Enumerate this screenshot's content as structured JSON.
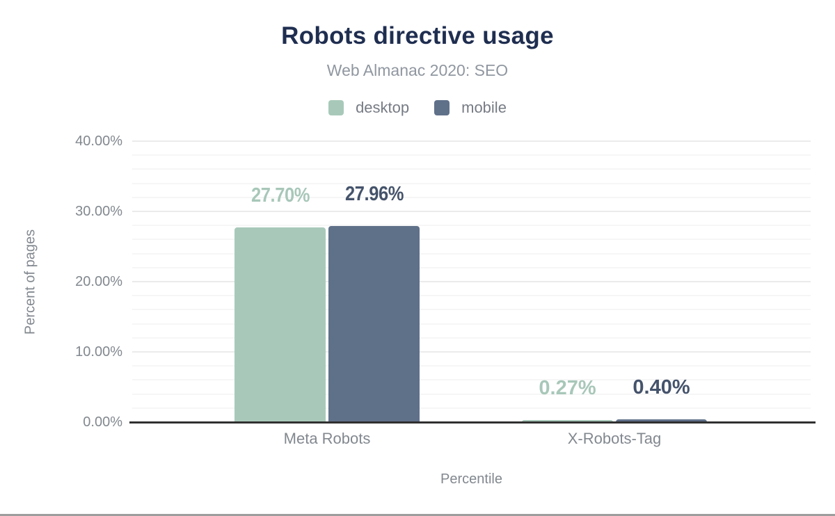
{
  "header": {
    "title": "Robots directive usage",
    "subtitle": "Web Almanac 2020: SEO"
  },
  "legend": [
    {
      "label": "desktop",
      "color": "#a8c9ba"
    },
    {
      "label": "mobile",
      "color": "#5f7089"
    }
  ],
  "axes": {
    "y_title": "Percent of pages",
    "x_title": "Percentile",
    "y_tick_labels": [
      "0.00%",
      "10.00%",
      "20.00%",
      "30.00%",
      "40.00%"
    ]
  },
  "chart_data": {
    "type": "bar",
    "title": "Robots directive usage",
    "subtitle": "Web Almanac 2020: SEO",
    "categories": [
      "Meta Robots",
      "X-Robots-Tag"
    ],
    "series": [
      {
        "name": "desktop",
        "color": "#a8c9ba",
        "label_color": "#a8c7b9",
        "values": [
          27.7,
          0.27
        ],
        "labels": [
          "27.70%",
          "0.27%"
        ]
      },
      {
        "name": "mobile",
        "color": "#5f7089",
        "label_color": "#45536b",
        "values": [
          27.96,
          0.4
        ],
        "labels": [
          "27.96%",
          "0.40%"
        ]
      }
    ],
    "xlabel": "Percentile",
    "ylabel": "Percent of pages",
    "ylim": [
      0,
      40
    ],
    "y_major_step": 10,
    "y_minor_step": 2,
    "grid": "on",
    "legend_position": "top"
  },
  "colors": {
    "title_text": "#1f2e50",
    "subtitle_text": "#9097a0",
    "axis_text": "#82888f",
    "legend_text": "#767b84",
    "axis_line": "#303030",
    "grid_major": "#ebebeb",
    "grid_minor": "#f6f6f6",
    "bottom_divider": "#9d9d9d",
    "background": "#ffffff"
  }
}
